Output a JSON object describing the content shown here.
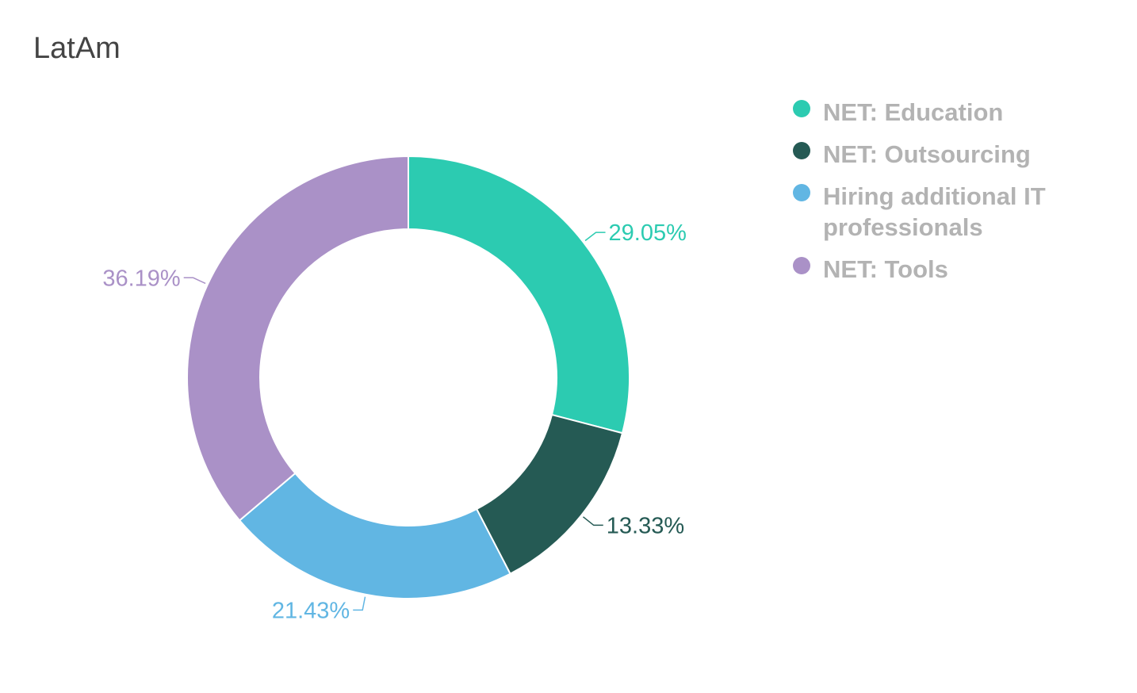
{
  "chart_data": {
    "type": "pie",
    "title": "LatAm",
    "donut": true,
    "legend_position": "right",
    "series": [
      {
        "name": "NET: Education",
        "value": 29.05,
        "label": "29.05%",
        "color": "#2ccbb1"
      },
      {
        "name": "NET: Outsourcing",
        "value": 13.33,
        "label": "13.33%",
        "color": "#255a54"
      },
      {
        "name": "Hiring additional IT professionals",
        "value": 21.43,
        "label": "21.43%",
        "color": "#61b6e3"
      },
      {
        "name": "NET: Tools",
        "value": 36.19,
        "label": "36.19%",
        "color": "#aa91c7"
      }
    ]
  }
}
